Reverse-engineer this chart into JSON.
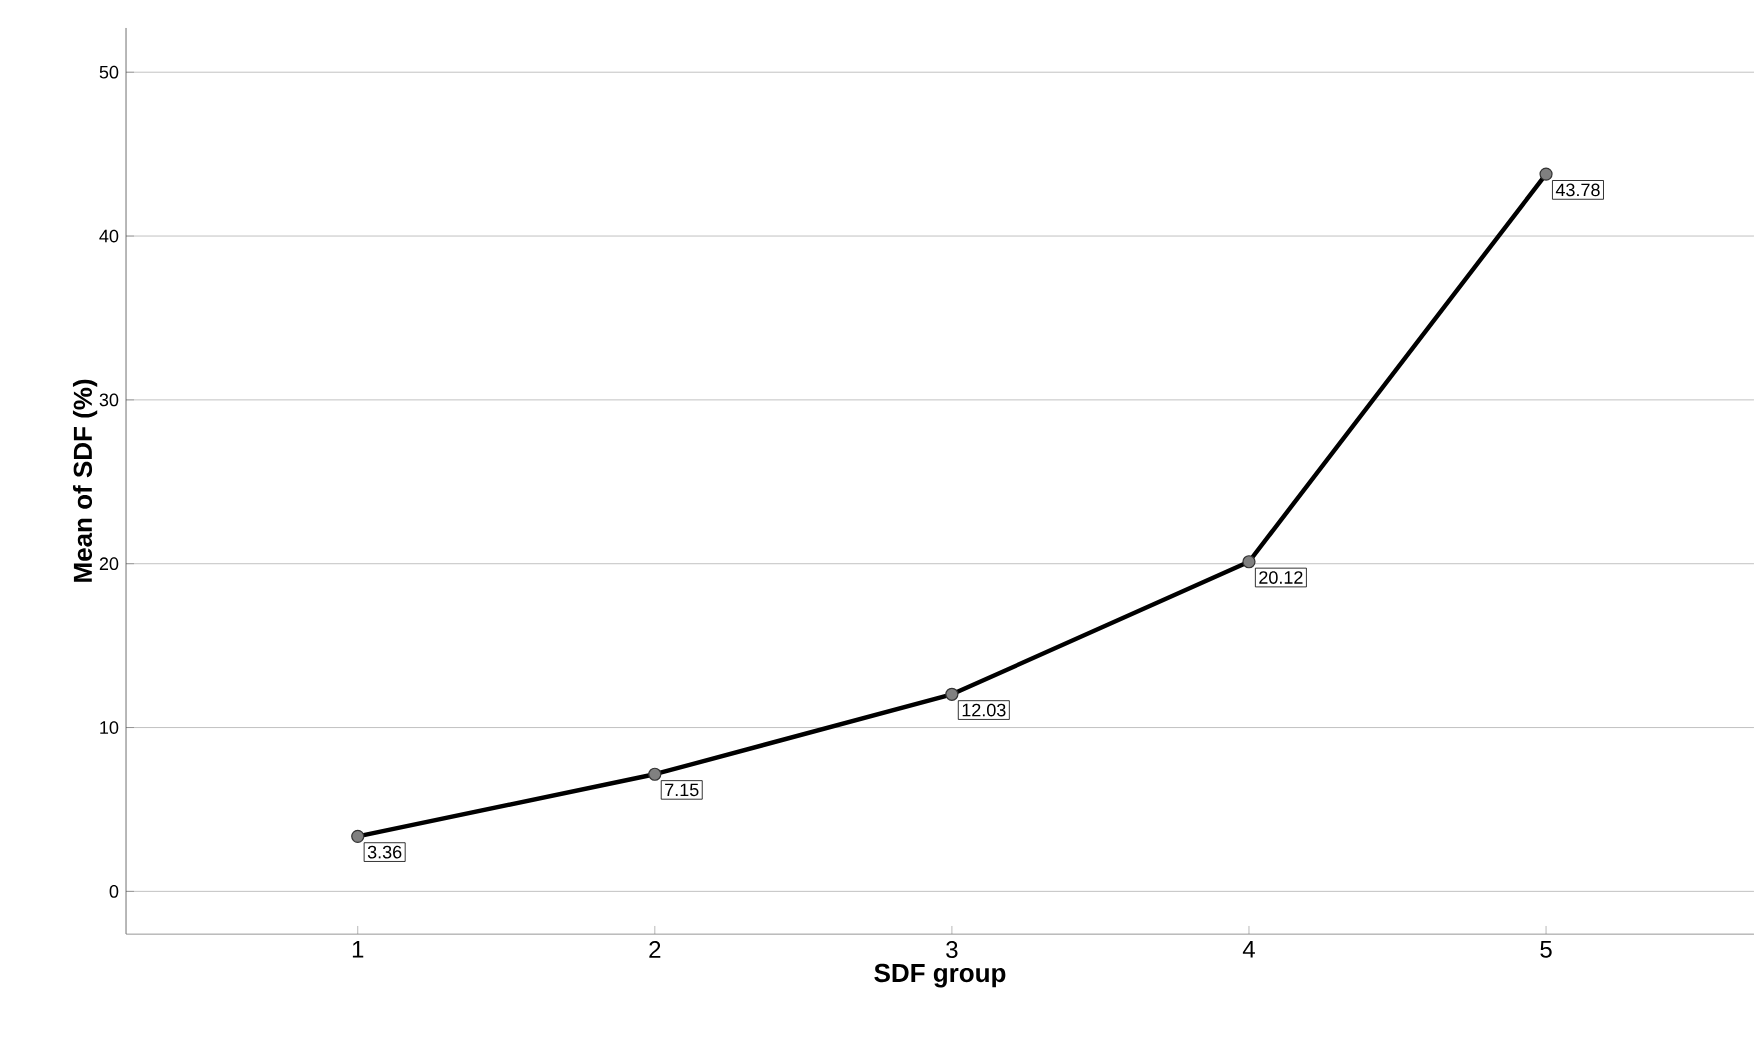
{
  "chart_data": {
    "type": "line",
    "xlabel": "SDF group",
    "ylabel": "Mean of SDF (%)",
    "categories": [
      "1",
      "2",
      "3",
      "4",
      "5"
    ],
    "values": [
      3.36,
      7.15,
      12.03,
      20.12,
      43.78
    ],
    "color": "#000000",
    "marker": "circle",
    "line_style": "solid",
    "data_labels": true,
    "ylim": [
      -2.6,
      52.7
    ],
    "yticks": [
      0,
      10,
      20,
      30,
      40,
      50
    ],
    "grid": "y"
  }
}
